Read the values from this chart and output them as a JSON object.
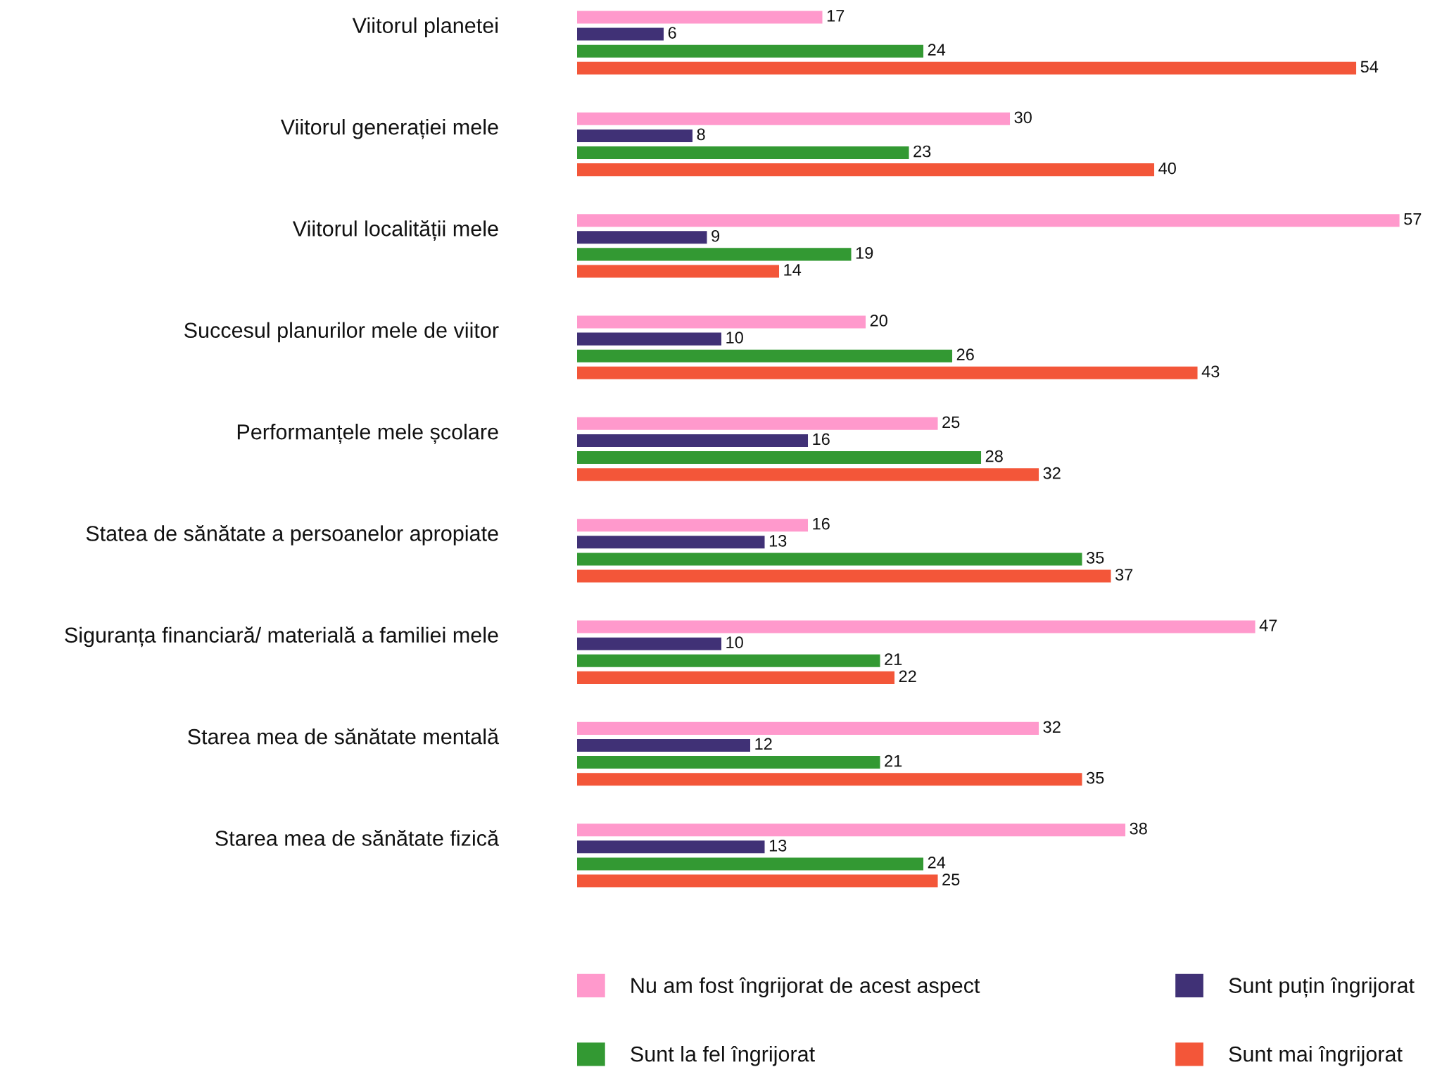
{
  "chart_data": {
    "type": "bar",
    "orientation": "horizontal",
    "categories": [
      "Viitorul planetei",
      "Viitorul generației mele",
      "Viitorul localității mele",
      "Succesul planurilor mele de viitor",
      "Performanțele mele școlare",
      "Statea de sănătate a persoanelor apropiate",
      "Siguranța financiară/ materială a familiei mele",
      "Starea mea de sănătate mentală",
      "Starea mea de sănătate fizică"
    ],
    "series": [
      {
        "name": "Nu am fost îngrijorat de acest aspect",
        "color": "#ff99cc",
        "values": [
          17,
          30,
          57,
          20,
          25,
          16,
          47,
          32,
          38
        ]
      },
      {
        "name": "Sunt puțin îngrijorat",
        "color": "#403176",
        "values": [
          6,
          8,
          9,
          10,
          16,
          13,
          10,
          12,
          13
        ]
      },
      {
        "name": "Sunt la fel îngrijorat",
        "color": "#339933",
        "values": [
          24,
          23,
          19,
          26,
          28,
          35,
          21,
          21,
          24
        ]
      },
      {
        "name": "Sunt mai îngrijorat",
        "color": "#f35639",
        "values": [
          54,
          40,
          14,
          43,
          32,
          37,
          22,
          35,
          25
        ]
      }
    ],
    "data_labels": true,
    "legend": "bottom",
    "tick_labels": "y"
  }
}
